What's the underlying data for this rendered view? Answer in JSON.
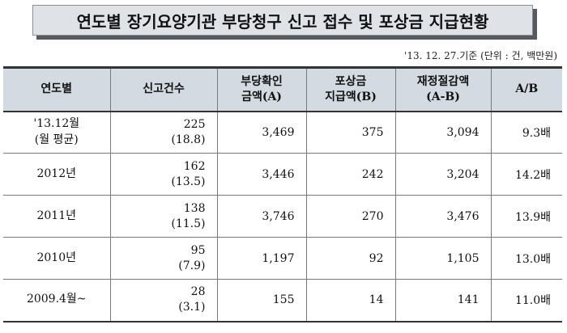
{
  "title": "연도별 장기요양기관 부당청구 신고 접수 및 포상금 지급현황",
  "reference_note": "'13. 12. 27.기준 (단위 : 건, 백만원)",
  "table": {
    "headers": [
      {
        "lines": [
          "연도별"
        ]
      },
      {
        "lines": [
          "신고건수"
        ]
      },
      {
        "lines": [
          "부당확인",
          "금액(A)"
        ]
      },
      {
        "lines": [
          "포상금",
          "지급액(B)"
        ]
      },
      {
        "lines": [
          "재정절감액",
          "(A-B)"
        ]
      },
      {
        "lines": [
          "A/B"
        ]
      }
    ],
    "rows": [
      {
        "year": [
          "'13.12월",
          "(월 평균)"
        ],
        "count": "225",
        "count_avg": "(18.8)",
        "confirmed": "3,469",
        "reward": "375",
        "savings": "3,094",
        "ratio": "9.3배"
      },
      {
        "year": [
          "2012년"
        ],
        "count": "162",
        "count_avg": "(13.5)",
        "confirmed": "3,446",
        "reward": "242",
        "savings": "3,204",
        "ratio": "14.2배"
      },
      {
        "year": [
          "2011년"
        ],
        "count": "138",
        "count_avg": "(11.5)",
        "confirmed": "3,746",
        "reward": "270",
        "savings": "3,476",
        "ratio": "13.9배"
      },
      {
        "year": [
          "2010년"
        ],
        "count": "95",
        "count_avg": "(7.9)",
        "confirmed": "1,197",
        "reward": "92",
        "savings": "1,105",
        "ratio": "13.0배"
      },
      {
        "year": [
          "2009.4월~"
        ],
        "count": "28",
        "count_avg": "(3.1)",
        "confirmed": "155",
        "reward": "14",
        "savings": "141",
        "ratio": "11.0배"
      }
    ]
  }
}
